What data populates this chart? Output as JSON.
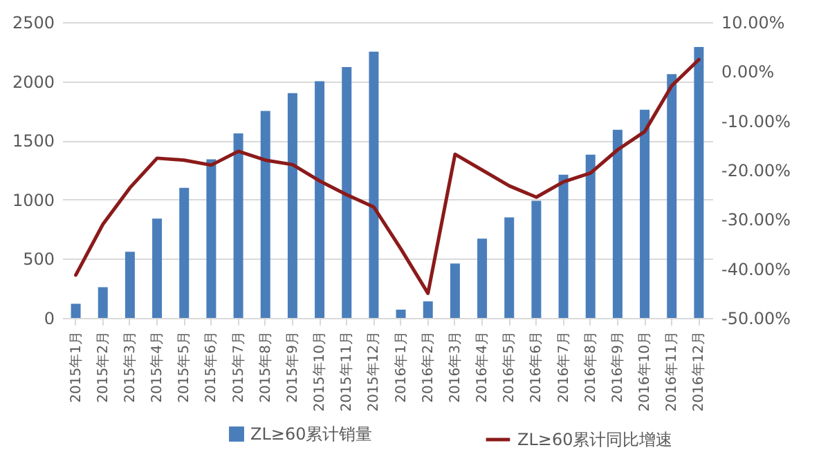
{
  "chart_data": {
    "type": "bar",
    "categories": [
      "2015年1月",
      "2015年2月",
      "2015年3月",
      "2015年4月",
      "2015年5月",
      "2015年6月",
      "2015年7月",
      "2015年8月",
      "2015年9月",
      "2015年10月",
      "2015年11月",
      "2015年12月",
      "2016年1月",
      "2016年2月",
      "2016年3月",
      "2016年4月",
      "2016年5月",
      "2016年6月",
      "2016年7月",
      "2016年8月",
      "2016年9月",
      "2016年10月",
      "2016年11月",
      "2016年12月"
    ],
    "series": [
      {
        "name": "ZL≥60累计销量",
        "color": "#4a7ebb",
        "values": [
          120,
          260,
          560,
          840,
          1100,
          1340,
          1560,
          1750,
          1900,
          2000,
          2120,
          2250,
          70,
          140,
          460,
          670,
          850,
          990,
          1210,
          1380,
          1590,
          1760,
          2060,
          2290
        ]
      },
      {
        "name": "ZL≥60累计同比增速",
        "type": "line",
        "axis": "y2",
        "color": "#8b1a1a",
        "values": [
          -41.3,
          -31,
          -23.6,
          -17.6,
          -18,
          -19,
          -16.2,
          -18,
          -18.9,
          -22.2,
          -25,
          -27.5,
          -36,
          -45,
          -16.8,
          -20,
          -23.2,
          -25.5,
          -22.4,
          -20.6,
          -15.9,
          -12.2,
          -2.9,
          2.4
        ]
      }
    ],
    "ylim": [
      0,
      2500
    ],
    "yticks": [
      0,
      500,
      1000,
      1500,
      2000,
      2500
    ],
    "y2lim": [
      -50,
      10
    ],
    "y2ticks": [
      {
        "value": 10,
        "label": "10.00%"
      },
      {
        "value": 0,
        "label": "0.00%"
      },
      {
        "value": -10,
        "label": "-10.00%"
      },
      {
        "value": -20,
        "label": "-20.00%"
      },
      {
        "value": -30,
        "label": "-30.00%"
      },
      {
        "value": -40,
        "label": "-40.00%"
      },
      {
        "value": -50,
        "label": "-50.00%"
      }
    ],
    "grid": "y",
    "legend": "bottom"
  }
}
